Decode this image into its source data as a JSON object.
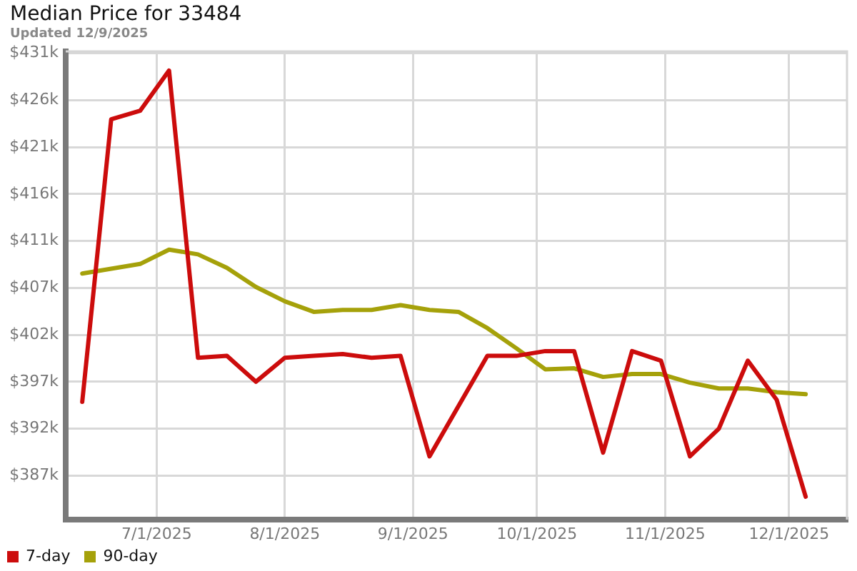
{
  "chart_data": {
    "type": "line",
    "title": "Median Price for 33484",
    "subtitle": "Updated 12/9/2025",
    "x": [
      "2025-06-13",
      "2025-06-20",
      "2025-06-27",
      "2025-07-04",
      "2025-07-11",
      "2025-07-18",
      "2025-07-25",
      "2025-08-01",
      "2025-08-08",
      "2025-08-15",
      "2025-08-22",
      "2025-08-29",
      "2025-09-05",
      "2025-09-12",
      "2025-09-19",
      "2025-09-26",
      "2025-10-03",
      "2025-10-10",
      "2025-10-17",
      "2025-10-24",
      "2025-10-31",
      "2025-11-07",
      "2025-11-14",
      "2025-11-21",
      "2025-11-28",
      "2025-12-05"
    ],
    "series": [
      {
        "name": "7-day",
        "color": "#cc0c0c",
        "x": [
          "2025-06-13",
          "2025-06-20",
          "2025-06-27",
          "2025-07-04",
          "2025-07-11",
          "2025-07-18",
          "2025-07-25",
          "2025-08-01",
          "2025-08-08",
          "2025-08-15",
          "2025-08-22",
          "2025-08-29",
          "2025-09-05",
          "2025-09-19",
          "2025-09-26",
          "2025-10-03",
          "2025-10-10",
          "2025-10-17",
          "2025-10-24",
          "2025-10-31",
          "2025-11-07",
          "2025-11-14",
          "2025-11-21",
          "2025-11-28",
          "2025-12-05"
        ],
        "values": [
          394.6,
          424.1,
          425.0,
          429.2,
          399.2,
          399.4,
          396.7,
          399.2,
          399.4,
          399.6,
          399.2,
          399.4,
          388.9,
          399.4,
          399.4,
          399.9,
          399.9,
          389.3,
          399.9,
          398.9,
          388.9,
          391.8,
          398.9,
          394.8,
          384.7
        ]
      },
      {
        "name": "90-day",
        "color": "#a5a10a",
        "values": [
          408.0,
          408.5,
          409.0,
          410.5,
          410.0,
          408.6,
          406.6,
          405.1,
          404.0,
          404.2,
          404.2,
          404.7,
          404.2,
          404.0,
          402.3,
          400.2,
          398.0,
          398.1,
          397.2,
          397.5,
          397.5,
          396.6,
          396.0,
          396.0,
          395.6,
          395.4
        ]
      }
    ],
    "xlim": [
      "2025-06-09",
      "2025-12-15"
    ],
    "xticks": [
      {
        "value": "2025-07-01",
        "label": "7/1/2025"
      },
      {
        "value": "2025-08-01",
        "label": "8/1/2025"
      },
      {
        "value": "2025-09-01",
        "label": "9/1/2025"
      },
      {
        "value": "2025-10-01",
        "label": "10/1/2025"
      },
      {
        "value": "2025-11-01",
        "label": "11/1/2025"
      },
      {
        "value": "2025-12-01",
        "label": "12/1/2025"
      }
    ],
    "ylim": [
      382.3,
      431.2
    ],
    "yticks": [
      {
        "value": 386.9,
        "label": "$387k"
      },
      {
        "value": 391.8,
        "label": "$392k"
      },
      {
        "value": 396.7,
        "label": "$397k"
      },
      {
        "value": 401.6,
        "label": "$402k"
      },
      {
        "value": 406.5,
        "label": "$407k"
      },
      {
        "value": 411.4,
        "label": "$411k"
      },
      {
        "value": 416.3,
        "label": "$416k"
      },
      {
        "value": 421.2,
        "label": "$421k"
      },
      {
        "value": 426.1,
        "label": "$426k"
      },
      {
        "value": 431.0,
        "label": "$431k"
      }
    ],
    "grid": true,
    "legend": "bottom left",
    "marker": "none",
    "line_style": "solid"
  }
}
